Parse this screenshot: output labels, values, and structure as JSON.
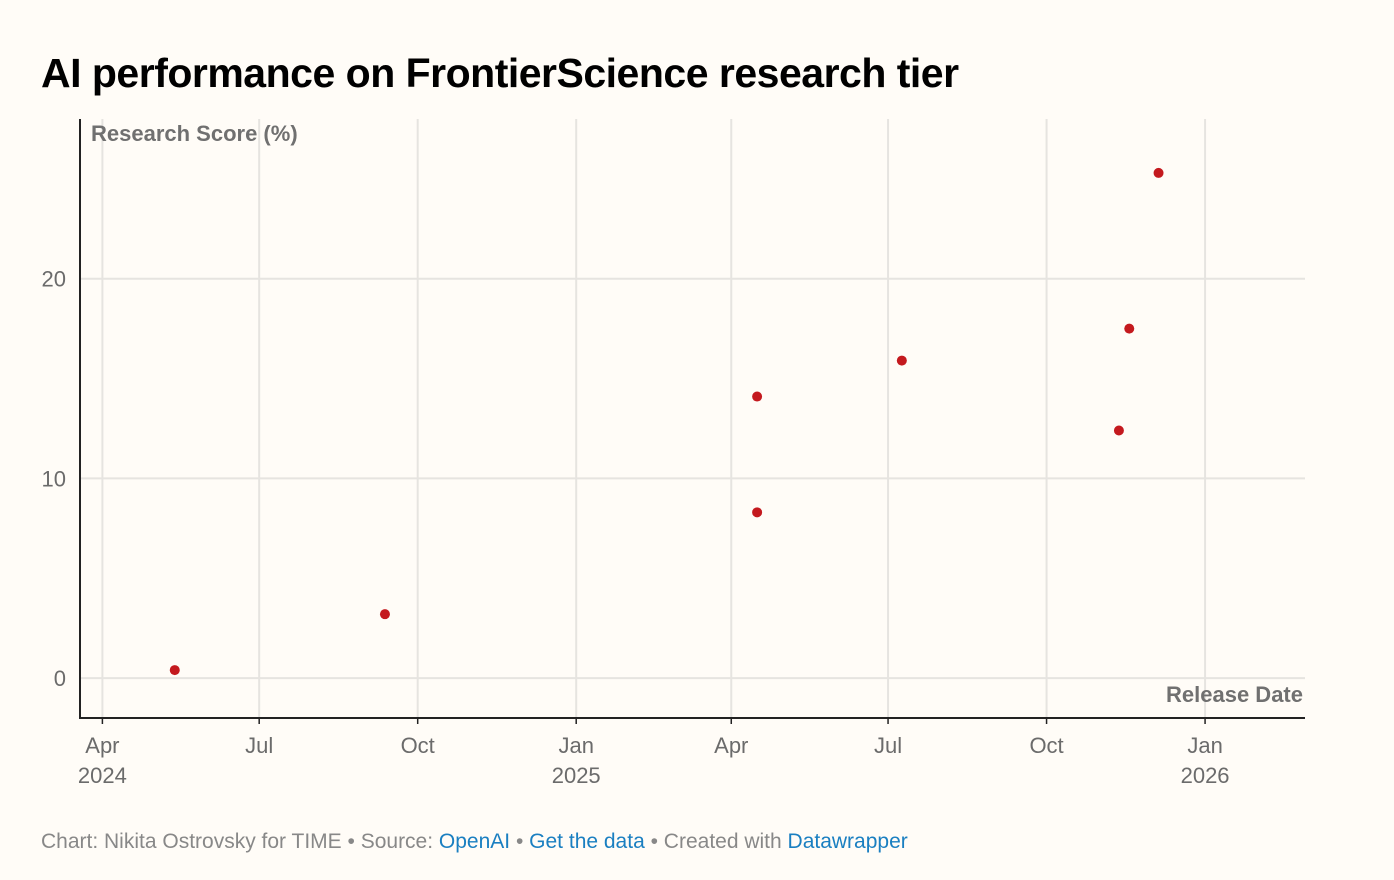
{
  "chart_data": {
    "type": "scatter",
    "title": "AI performance on FrontierScience research tier",
    "ylabel": "Research Score (%)",
    "xlabel": "Release Date",
    "ylim": [
      -2,
      28
    ],
    "xlim": [
      "2024-03-19",
      "2026-02-28"
    ],
    "grid": true,
    "y_ticks": [
      {
        "value": 0,
        "label": "0"
      },
      {
        "value": 10,
        "label": "10"
      },
      {
        "value": 20,
        "label": "20"
      }
    ],
    "x_ticks": [
      {
        "date": "2024-04-01",
        "month": "Apr",
        "year": "2024"
      },
      {
        "date": "2024-07-01",
        "month": "Jul",
        "year": ""
      },
      {
        "date": "2024-10-01",
        "month": "Oct",
        "year": ""
      },
      {
        "date": "2025-01-01",
        "month": "Jan",
        "year": "2025"
      },
      {
        "date": "2025-04-01",
        "month": "Apr",
        "year": ""
      },
      {
        "date": "2025-07-01",
        "month": "Jul",
        "year": ""
      },
      {
        "date": "2025-10-01",
        "month": "Oct",
        "year": ""
      },
      {
        "date": "2026-01-01",
        "month": "Jan",
        "year": "2026"
      }
    ],
    "points": [
      {
        "x": "2024-05-13",
        "y": 0.4
      },
      {
        "x": "2024-09-12",
        "y": 3.2
      },
      {
        "x": "2025-04-16",
        "y": 8.3
      },
      {
        "x": "2025-04-16",
        "y": 14.1
      },
      {
        "x": "2025-07-09",
        "y": 15.9
      },
      {
        "x": "2025-11-12",
        "y": 12.4
      },
      {
        "x": "2025-11-18",
        "y": 17.5
      },
      {
        "x": "2025-12-05",
        "y": 25.3
      }
    ],
    "point_color": "#c4191e"
  },
  "footer": {
    "credit": "Chart: Nikita Ostrovsky for TIME",
    "bullet": " • ",
    "source_prefix": "Source: ",
    "source_link": "OpenAI",
    "get_data": "Get the data",
    "created_prefix": "Created with ",
    "created_link": "Datawrapper"
  }
}
